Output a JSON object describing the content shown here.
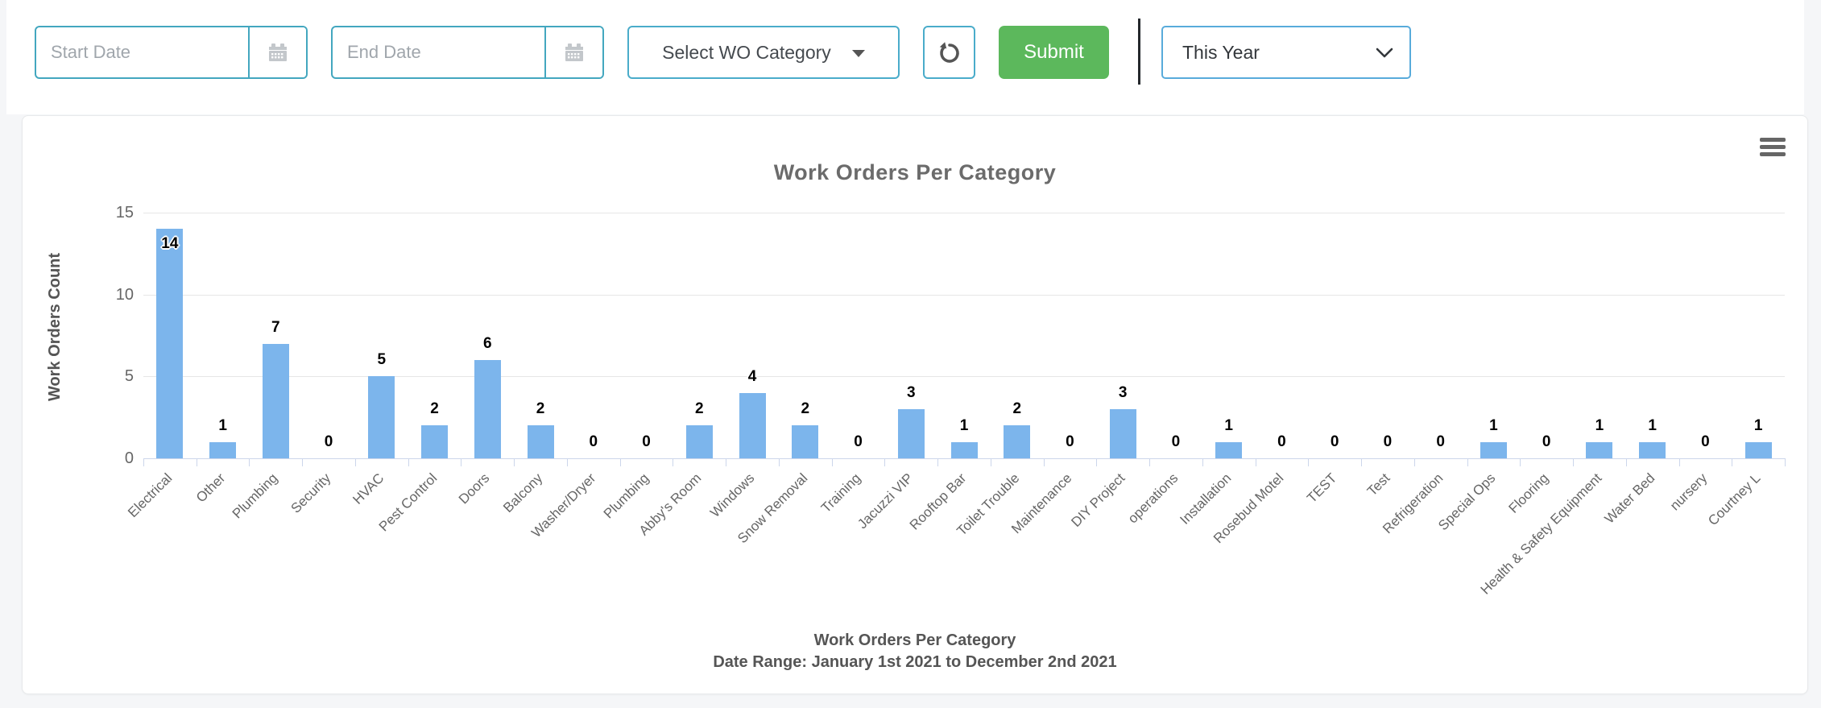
{
  "toolbar": {
    "start_date": {
      "placeholder": "Start Date"
    },
    "end_date": {
      "placeholder": "End Date"
    },
    "wo_category_dropdown": {
      "label": "Select WO Category"
    },
    "submit_button": {
      "label": "Submit"
    },
    "period_select": {
      "value": "This Year"
    }
  },
  "icons": {
    "calendar": "calendar-icon",
    "refresh": "refresh-icon",
    "chevron": "chevron-down-icon",
    "menu": "hamburger-menu-icon"
  },
  "colors": {
    "date_input_border": "#43a7bf",
    "dropdown_border": "#4aacca",
    "period_select_border": "#58abdb",
    "submit_bg": "#5cb85c",
    "bar": "#7cb5ec",
    "grid": "#e6e6e6",
    "axis": "#ccd6eb"
  },
  "chart_data": {
    "type": "bar",
    "title": "Work Orders Per Category",
    "ylabel": "Work Orders Count",
    "xlabel": "",
    "ylim": [
      0,
      15
    ],
    "yticks": [
      0,
      5,
      10,
      15
    ],
    "grid": true,
    "legend": "none",
    "categories": [
      "Electrical",
      "Other",
      "Plumbing",
      "Security",
      "HVAC",
      "Pest Control",
      "Doors",
      "Balcony",
      "Washer/Dryer",
      "Plumbing",
      "Abby's Room",
      "Windows",
      "Snow Removal",
      "Training",
      "Jacuzzi VIP",
      "Rooftop Bar",
      "Toilet Trouble",
      "Maintenance",
      "DIY Project",
      "operations",
      "Installation",
      "Rosebud Motel",
      "TEST",
      "Test",
      "Refrigeration",
      "Special Ops",
      "Flooring",
      "Health & Safety Equipment",
      "Water Bed",
      "nursery",
      "Courtney L"
    ],
    "values": [
      14,
      1,
      7,
      0,
      5,
      2,
      6,
      2,
      0,
      0,
      2,
      4,
      2,
      0,
      3,
      1,
      2,
      0,
      3,
      0,
      1,
      0,
      0,
      0,
      0,
      1,
      0,
      1,
      1,
      0,
      1
    ],
    "caption": [
      "Work Orders Per Category",
      "Date Range: January 1st 2021 to December 2nd 2021"
    ]
  }
}
